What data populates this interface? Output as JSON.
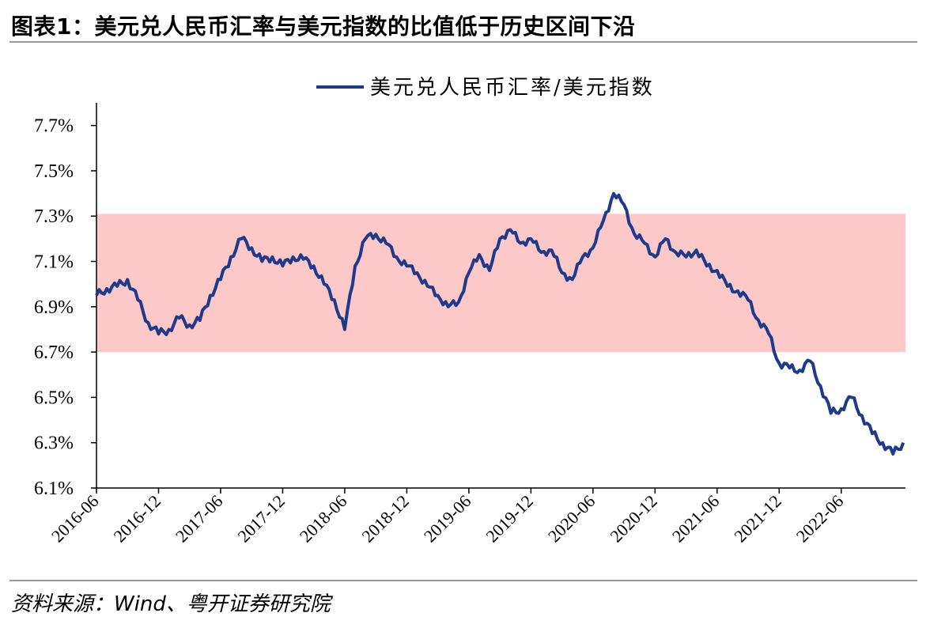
{
  "title": "图表1：美元兑人民币汇率与美元指数的比值低于历史区间下沿",
  "source": "资料来源：Wind、粤开证券研究院",
  "chart_data": {
    "type": "line",
    "legend": "美元兑人民币汇率/美元指数",
    "legend_position": "top-center",
    "line_color": "#1f3a8a",
    "band_color": "#fcc8c8",
    "band": [
      6.7,
      7.31
    ],
    "ylim": [
      6.1,
      7.8
    ],
    "yticks": [
      "6.1%",
      "6.3%",
      "6.5%",
      "6.7%",
      "6.9%",
      "7.1%",
      "7.3%",
      "7.5%",
      "7.7%"
    ],
    "ytick_values": [
      6.1,
      6.3,
      6.5,
      6.7,
      6.9,
      7.1,
      7.3,
      7.5,
      7.7
    ],
    "xticks": [
      "2016-06",
      "2016-12",
      "2017-06",
      "2017-12",
      "2018-06",
      "2018-12",
      "2019-06",
      "2019-12",
      "2020-06",
      "2020-12",
      "2021-06",
      "2021-12",
      "2022-06"
    ],
    "x_range": [
      "2016-06",
      "2022-12"
    ],
    "grid": false,
    "series": [
      {
        "name": "美元兑人民币汇率/美元指数",
        "x": [
          "2016-06",
          "2016-07",
          "2016-08",
          "2016-09",
          "2016-10",
          "2016-11",
          "2016-12",
          "2017-01",
          "2017-02",
          "2017-03",
          "2017-04",
          "2017-05",
          "2017-06",
          "2017-07",
          "2017-08",
          "2017-09",
          "2017-10",
          "2017-11",
          "2017-12",
          "2018-01",
          "2018-02",
          "2018-03",
          "2018-04",
          "2018-05",
          "2018-06",
          "2018-07",
          "2018-08",
          "2018-09",
          "2018-10",
          "2018-11",
          "2018-12",
          "2019-01",
          "2019-02",
          "2019-03",
          "2019-04",
          "2019-05",
          "2019-06",
          "2019-07",
          "2019-08",
          "2019-09",
          "2019-10",
          "2019-11",
          "2019-12",
          "2020-01",
          "2020-02",
          "2020-03",
          "2020-04",
          "2020-05",
          "2020-06",
          "2020-07",
          "2020-08",
          "2020-09",
          "2020-10",
          "2020-11",
          "2020-12",
          "2021-01",
          "2021-02",
          "2021-03",
          "2021-04",
          "2021-05",
          "2021-06",
          "2021-07",
          "2021-08",
          "2021-09",
          "2021-10",
          "2021-11",
          "2021-12",
          "2022-01",
          "2022-02",
          "2022-03",
          "2022-04",
          "2022-05",
          "2022-06",
          "2022-07",
          "2022-08",
          "2022-09",
          "2022-10",
          "2022-11",
          "2022-12"
        ],
        "values": [
          6.95,
          6.98,
          6.99,
          7.02,
          6.93,
          6.83,
          6.78,
          6.8,
          6.85,
          6.82,
          6.84,
          6.95,
          7.02,
          7.12,
          7.2,
          7.16,
          7.1,
          7.12,
          7.08,
          7.12,
          7.11,
          7.08,
          7.0,
          6.93,
          6.8,
          7.08,
          7.2,
          7.22,
          7.18,
          7.12,
          7.08,
          7.05,
          6.99,
          6.95,
          6.9,
          6.92,
          7.05,
          7.13,
          7.06,
          7.2,
          7.24,
          7.18,
          7.2,
          7.14,
          7.15,
          7.05,
          7.02,
          7.12,
          7.16,
          7.28,
          7.4,
          7.35,
          7.22,
          7.18,
          7.12,
          7.2,
          7.14,
          7.12,
          7.15,
          7.08,
          7.06,
          6.99,
          6.97,
          6.93,
          6.84,
          6.78,
          6.65,
          6.63,
          6.62,
          6.66,
          6.55,
          6.43,
          6.45,
          6.5,
          6.42,
          6.34,
          6.3,
          6.25,
          6.3
        ]
      }
    ]
  }
}
